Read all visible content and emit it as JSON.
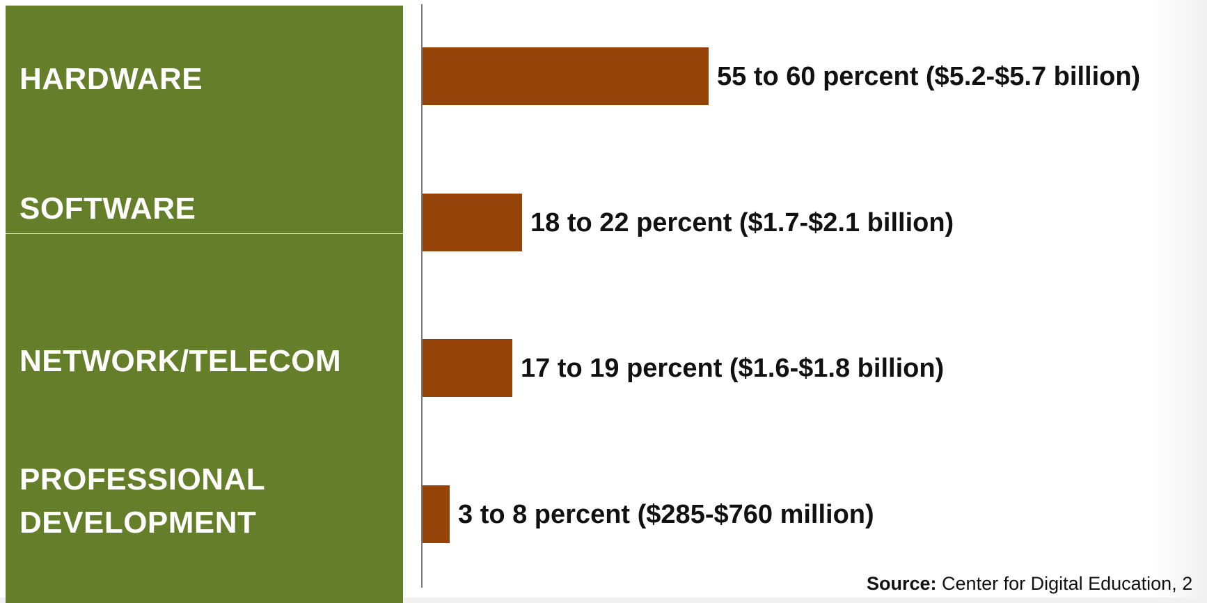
{
  "chart_data": {
    "type": "bar",
    "orientation": "horizontal",
    "categories": [
      "HARDWARE",
      "SOFTWARE",
      "NETWORK/TELECOM",
      "PROFESSIONAL DEVELOPMENT"
    ],
    "category_lines": [
      [
        "HARDWARE"
      ],
      [
        "SOFTWARE"
      ],
      [
        "NETWORK/TELECOM"
      ],
      [
        "PROFESSIONAL",
        "DEVELOPMENT"
      ]
    ],
    "values": [
      57.5,
      20,
      18,
      5.5
    ],
    "data_labels": [
      "55 to 60 percent ($5.2-$5.7 billion)",
      "18 to 22 percent ($1.7-$2.1 billion)",
      "17 to 19 percent ($1.6-$1.8 billion)",
      "3 to 8 percent ($285-$760 million)"
    ],
    "xlim": [
      0,
      100
    ],
    "grid": false,
    "legend": "none"
  },
  "source": {
    "key": "Source:",
    "text": " Center for Digital Education, 2"
  },
  "colors": {
    "panel": "#657e2a",
    "bar": "#96430a",
    "label_text": "#ffffff",
    "value_text": "#111111"
  }
}
